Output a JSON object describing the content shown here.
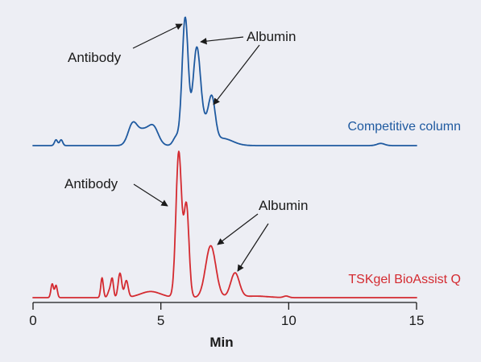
{
  "chart_data": {
    "type": "line",
    "title": "",
    "xlabel": "Min",
    "ylabel": "",
    "xlim": [
      0,
      15
    ],
    "xticks": [
      0,
      5,
      10,
      15
    ],
    "grid": false,
    "series": [
      {
        "name": "Competitive column",
        "color": "#1f5aa0",
        "baseline": 0,
        "peaks": [
          {
            "x": 0.9,
            "h": 0.04,
            "w": 0.06
          },
          {
            "x": 1.1,
            "h": 0.04,
            "w": 0.06
          },
          {
            "x": 3.9,
            "h": 0.15,
            "w": 0.18
          },
          {
            "x": 4.3,
            "h": 0.09,
            "w": 0.2
          },
          {
            "x": 4.7,
            "h": 0.13,
            "w": 0.2
          },
          {
            "x": 5.6,
            "h": 0.06,
            "w": 0.12
          },
          {
            "x": 5.95,
            "h": 0.88,
            "w": 0.12
          },
          {
            "x": 6.4,
            "h": 0.66,
            "w": 0.15
          },
          {
            "x": 6.75,
            "h": 0.12,
            "w": 0.18
          },
          {
            "x": 7.0,
            "h": 0.27,
            "w": 0.13
          },
          {
            "x": 7.4,
            "h": 0.05,
            "w": 0.4
          },
          {
            "x": 13.6,
            "h": 0.015,
            "w": 0.15
          }
        ],
        "annotations": [
          {
            "text": "Antibody",
            "target_x": 5.95
          },
          {
            "text": "Albumin",
            "target_x": 6.4
          },
          {
            "text": "Albumin",
            "target_x": 7.0
          }
        ]
      },
      {
        "name": "TSKgel BioAssist Q",
        "color": "#d42a30",
        "baseline": 0,
        "peaks": [
          {
            "x": 0.75,
            "h": 0.09,
            "w": 0.05
          },
          {
            "x": 0.9,
            "h": 0.08,
            "w": 0.05
          },
          {
            "x": 2.7,
            "h": 0.13,
            "w": 0.05
          },
          {
            "x": 3.0,
            "h": 0.05,
            "w": 0.07
          },
          {
            "x": 3.1,
            "h": 0.11,
            "w": 0.05
          },
          {
            "x": 3.4,
            "h": 0.16,
            "w": 0.07
          },
          {
            "x": 3.65,
            "h": 0.11,
            "w": 0.07
          },
          {
            "x": 4.6,
            "h": 0.04,
            "w": 0.4
          },
          {
            "x": 5.7,
            "h": 0.95,
            "w": 0.11
          },
          {
            "x": 6.0,
            "h": 0.6,
            "w": 0.1
          },
          {
            "x": 6.95,
            "h": 0.34,
            "w": 0.2
          },
          {
            "x": 7.9,
            "h": 0.16,
            "w": 0.17
          },
          {
            "x": 8.7,
            "h": 0.01,
            "w": 0.5
          },
          {
            "x": 9.9,
            "h": 0.01,
            "w": 0.1
          }
        ],
        "annotations": [
          {
            "text": "Antibody",
            "target_x": 5.2
          },
          {
            "text": "Albumin",
            "target_x": 6.95
          },
          {
            "text": "Albumin",
            "target_x": 7.9
          }
        ]
      }
    ]
  }
}
